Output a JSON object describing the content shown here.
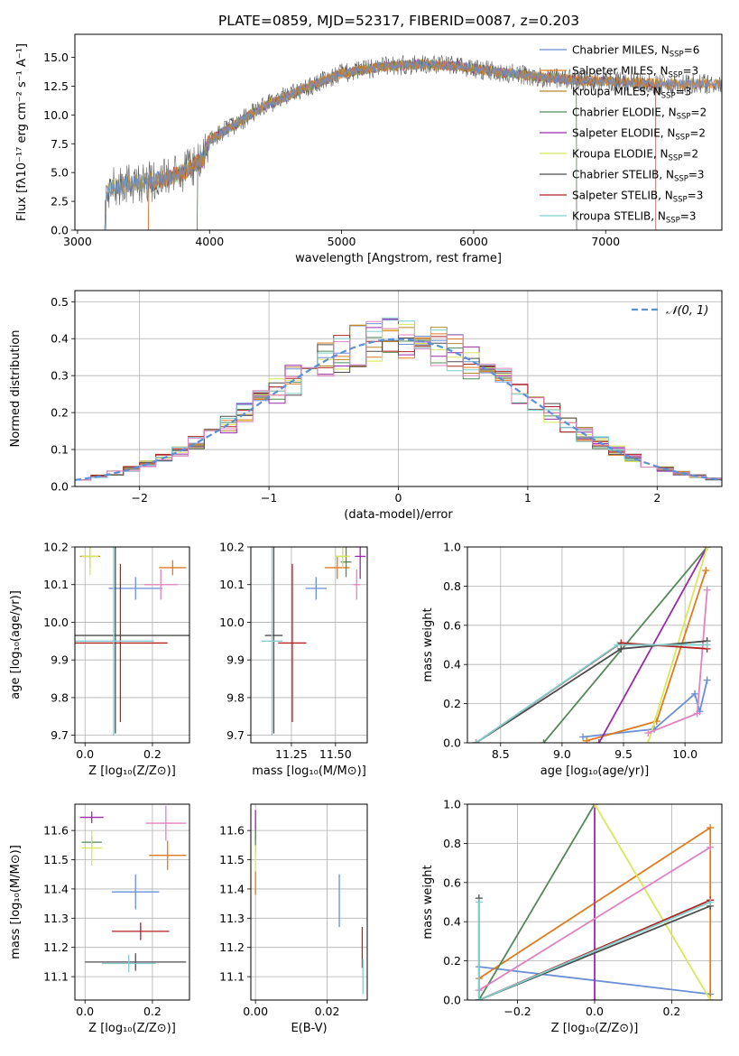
{
  "figure_title": "PLATE=0859, MJD=52317, FIBERID=0087, z=0.203",
  "colors": {
    "Chabrier MILES": "#6a8fd6",
    "Salpeter MILES": "#e07b1e",
    "Kroupa MILES": "#b5892d",
    "Chabrier ELODIE": "#55885a",
    "Salpeter ELODIE": "#9a2aaa",
    "Kroupa ELODIE": "#d8e85a",
    "Chabrier STELIB": "#4d4d4d",
    "Salpeter STELIB": "#b22222",
    "Kroupa STELIB": "#7fcfcf",
    "pink": "#e083c0"
  },
  "chart_data": [
    {
      "id": "spectrum",
      "type": "line",
      "xlabel": "wavelength [Angstrom, rest frame]",
      "ylabel": "Flux [fλ10⁻¹⁷ erg cm⁻² s⁻¹ A⁻¹]",
      "xlim": [
        2980,
        7880
      ],
      "ylim": [
        0,
        17
      ],
      "xticks": [
        3000,
        4000,
        5000,
        6000,
        7000
      ],
      "yticks": [
        0.0,
        2.5,
        5.0,
        7.5,
        10.0,
        12.5,
        15.0
      ],
      "continuum_knots": [
        [
          3200,
          0.3
        ],
        [
          3230,
          3.6
        ],
        [
          3400,
          4.0
        ],
        [
          3600,
          4.3
        ],
        [
          3800,
          5.0
        ],
        [
          3950,
          6.2
        ],
        [
          4000,
          7.8
        ],
        [
          4200,
          9.2
        ],
        [
          4400,
          10.7
        ],
        [
          4700,
          12.2
        ],
        [
          5000,
          13.6
        ],
        [
          5300,
          14.2
        ],
        [
          5600,
          14.4
        ],
        [
          5900,
          14.2
        ],
        [
          6200,
          13.7
        ],
        [
          6500,
          13.3
        ],
        [
          6800,
          13.0
        ],
        [
          7100,
          12.9
        ],
        [
          7400,
          12.7
        ]
      ],
      "legend": [
        {
          "name": "Chabrier MILES",
          "label": "Chabrier MILES, N",
          "n": "6"
        },
        {
          "name": "Salpeter MILES",
          "label": "Salpeter MILES, N",
          "n": "3"
        },
        {
          "name": "Kroupa MILES",
          "label": "Kroupa MILES, N",
          "n": "3"
        },
        {
          "name": "Chabrier ELODIE",
          "label": "Chabrier ELODIE, N",
          "n": "2"
        },
        {
          "name": "Salpeter ELODIE",
          "label": "Salpeter ELODIE, N",
          "n": "2"
        },
        {
          "name": "Kroupa ELODIE",
          "label": "Kroupa ELODIE, N",
          "n": "2"
        },
        {
          "name": "Chabrier STELIB",
          "label": "Chabrier STELIB, N",
          "n": "3"
        },
        {
          "name": "Salpeter STELIB",
          "label": "Salpeter STELIB, N",
          "n": "3"
        },
        {
          "name": "Kroupa STELIB",
          "label": "Kroupa STELIB, N",
          "n": "3"
        }
      ],
      "legend_subscript": "SSP",
      "legend_placement": "right"
    },
    {
      "id": "residuals",
      "type": "line",
      "xlabel": "(data-model)/error",
      "ylabel": "Normed distribution",
      "xlim": [
        -2.5,
        2.5
      ],
      "ylim": [
        0,
        0.53
      ],
      "xticks": [
        -2,
        -1,
        0,
        1,
        2
      ],
      "xtick_labels": [
        "−2",
        "−1",
        "0",
        "1",
        "2"
      ],
      "yticks": [
        0.0,
        0.1,
        0.2,
        0.3,
        0.4,
        0.5
      ],
      "bins": 40,
      "bin_range": [
        -2.5,
        2.5
      ],
      "reference_curve": "gaussian",
      "legend": "𝒩(0, 1)",
      "grid": true
    },
    {
      "id": "age_vs_Z",
      "type": "scatter",
      "xlabel": "Z [log₁₀(Z/Z⊙)]",
      "ylabel": "age  [log₁₀(age/yr)]",
      "xlim": [
        -0.03,
        0.31
      ],
      "ylim": [
        9.68,
        10.2
      ],
      "xticks": [
        0.0,
        0.2
      ],
      "yticks": [
        9.7,
        9.8,
        9.9,
        10.0,
        10.1,
        10.2
      ],
      "points": [
        {
          "series": "Chabrier MILES",
          "x": 0.15,
          "y": 10.09,
          "xerr": 0.08,
          "yerr": 0.03
        },
        {
          "series": "Salpeter MILES",
          "x": 0.26,
          "y": 10.145,
          "xerr": 0.04,
          "yerr": 0.02
        },
        {
          "series": "Kroupa MILES",
          "x": 0.015,
          "y": 10.175,
          "xerr": 0.03,
          "yerr": 0.03
        },
        {
          "series": "Kroupa ELODIE",
          "x": 0.015,
          "y": 10.175,
          "xerr": 0.025,
          "yerr": 0.05
        },
        {
          "series": "pink",
          "x": 0.225,
          "y": 10.1,
          "xerr": 0.05,
          "yerr": 0.04
        },
        {
          "series": "Chabrier STELIB",
          "x": 0.09,
          "y": 9.965,
          "xerr": 0.3,
          "yerr": 0.26
        },
        {
          "series": "Salpeter STELIB",
          "x": 0.105,
          "y": 9.945,
          "xerr": 0.14,
          "yerr": 0.21
        },
        {
          "series": "Kroupa STELIB",
          "x": 0.085,
          "y": 9.95,
          "xerr": 0.12,
          "yerr": 0.25
        }
      ]
    },
    {
      "id": "age_vs_mass",
      "type": "scatter",
      "xlabel": "mass [log₁₀(M/M⊙)]",
      "ylabel": "",
      "xlim": [
        11.02,
        11.68
      ],
      "ylim": [
        9.68,
        10.2
      ],
      "xticks": [
        11.25,
        11.5
      ],
      "xtick_labels": [
        "11.25",
        "11.50"
      ],
      "yticks": [
        9.7,
        9.8,
        9.9,
        10.0,
        10.1,
        10.2
      ],
      "points": [
        {
          "series": "Chabrier MILES",
          "x": 11.39,
          "y": 10.09,
          "xerr": 0.06,
          "yerr": 0.03
        },
        {
          "series": "Salpeter MILES",
          "x": 11.51,
          "y": 10.145,
          "xerr": 0.07,
          "yerr": 0.03
        },
        {
          "series": "Kroupa MILES",
          "x": 11.54,
          "y": 10.175,
          "xerr": 0.04,
          "yerr": 0.03
        },
        {
          "series": "Chabrier ELODIE",
          "x": 11.56,
          "y": 10.16,
          "xerr": 0.03,
          "yerr": 0.04
        },
        {
          "series": "Salpeter ELODIE",
          "x": 11.64,
          "y": 10.175,
          "xerr": 0.03,
          "yerr": 0.06
        },
        {
          "series": "Kroupa ELODIE",
          "x": 11.54,
          "y": 10.175,
          "xerr": 0.04,
          "yerr": 0.03
        },
        {
          "series": "pink",
          "x": 11.62,
          "y": 10.1,
          "xerr": 0.02,
          "yerr": 0.04
        },
        {
          "series": "Chabrier STELIB",
          "x": 11.15,
          "y": 9.965,
          "xerr": 0.05,
          "yerr": 0.26
        },
        {
          "series": "Salpeter STELIB",
          "x": 11.255,
          "y": 9.945,
          "xerr": 0.08,
          "yerr": 0.21
        },
        {
          "series": "Kroupa STELIB",
          "x": 11.14,
          "y": 9.95,
          "xerr": 0.06,
          "yerr": 0.25
        }
      ]
    },
    {
      "id": "mass_weight_vs_age",
      "type": "line",
      "xlabel": "age  [log₁₀(age/yr)]",
      "ylabel": "mass weight",
      "xlim": [
        8.23,
        10.3
      ],
      "ylim": [
        0,
        1.0
      ],
      "xticks": [
        8.5,
        9.0,
        9.5,
        10.0
      ],
      "yticks": [
        0.0,
        0.2,
        0.4,
        0.6,
        0.8,
        1.0
      ],
      "series": [
        {
          "name": "Chabrier MILES",
          "x": [
            9.17,
            9.75,
            10.08,
            10.12,
            10.18
          ],
          "y": [
            0.03,
            0.07,
            0.25,
            0.16,
            0.32
          ]
        },
        {
          "name": "Salpeter MILES",
          "x": [
            9.2,
            9.77,
            10.17
          ],
          "y": [
            0.01,
            0.11,
            0.88
          ]
        },
        {
          "name": "Chabrier ELODIE",
          "x": [
            8.85,
            10.18
          ],
          "y": [
            0.0,
            1.0
          ]
        },
        {
          "name": "Salpeter ELODIE",
          "x": [
            9.3,
            10.18
          ],
          "y": [
            0.0,
            1.0
          ]
        },
        {
          "name": "Kroupa ELODIE",
          "x": [
            9.7,
            10.18
          ],
          "y": [
            0.0,
            1.0
          ]
        },
        {
          "name": "pink",
          "x": [
            9.7,
            10.1,
            10.18
          ],
          "y": [
            0.05,
            0.15,
            0.78
          ]
        },
        {
          "name": "Chabrier STELIB",
          "x": [
            8.3,
            9.48,
            10.18
          ],
          "y": [
            0.0,
            0.48,
            0.52
          ]
        },
        {
          "name": "Salpeter STELIB",
          "x": [
            8.3,
            9.48,
            10.18
          ],
          "y": [
            0.0,
            0.51,
            0.48
          ]
        },
        {
          "name": "Kroupa STELIB",
          "x": [
            8.3,
            9.45,
            10.18
          ],
          "y": [
            0.0,
            0.5,
            0.5
          ]
        }
      ]
    },
    {
      "id": "mass_vs_Z",
      "type": "scatter",
      "xlabel": "Z [log₁₀(Z/Z⊙)]",
      "ylabel": "mass [log₁₀(M/M⊙)]",
      "xlim": [
        -0.03,
        0.31
      ],
      "ylim": [
        11.02,
        11.69
      ],
      "xticks": [
        0.0,
        0.2
      ],
      "yticks": [
        11.1,
        11.2,
        11.3,
        11.4,
        11.5,
        11.6
      ],
      "points": [
        {
          "series": "Chabrier MILES",
          "x": 0.15,
          "y": 11.39,
          "xerr": 0.07,
          "yerr": 0.06
        },
        {
          "series": "Salpeter MILES",
          "x": 0.245,
          "y": 11.515,
          "xerr": 0.055,
          "yerr": 0.05
        },
        {
          "series": "Chabrier ELODIE",
          "x": 0.02,
          "y": 11.56,
          "xerr": 0.03,
          "yerr": 0.02
        },
        {
          "series": "Salpeter ELODIE",
          "x": 0.02,
          "y": 11.645,
          "xerr": 0.035,
          "yerr": 0.02
        },
        {
          "series": "Kroupa ELODIE",
          "x": 0.02,
          "y": 11.54,
          "xerr": 0.03,
          "yerr": 0.06
        },
        {
          "series": "pink",
          "x": 0.24,
          "y": 11.625,
          "xerr": 0.06,
          "yerr": 0.06
        },
        {
          "series": "Salpeter STELIB",
          "x": 0.165,
          "y": 11.255,
          "xerr": 0.085,
          "yerr": 0.03
        },
        {
          "series": "Chabrier STELIB",
          "x": 0.15,
          "y": 11.15,
          "xerr": 0.15,
          "yerr": 0.03
        },
        {
          "series": "Kroupa STELIB",
          "x": 0.13,
          "y": 11.145,
          "xerr": 0.08,
          "yerr": 0.03
        }
      ]
    },
    {
      "id": "mass_vs_EBV",
      "type": "scatter",
      "xlabel": "E(B-V)",
      "ylabel": "",
      "xlim": [
        -0.0013,
        0.0312
      ],
      "ylim": [
        11.02,
        11.69
      ],
      "xticks": [
        0.0,
        0.02
      ],
      "xtick_labels": [
        "0.00",
        "0.02"
      ],
      "yticks": [
        11.1,
        11.2,
        11.3,
        11.4,
        11.5,
        11.6
      ],
      "points": [
        {
          "series": "Salpeter ELODIE",
          "x": 0.0,
          "y": 11.62,
          "xerr": 0.0,
          "yerr": 0.05
        },
        {
          "series": "Chabrier ELODIE",
          "x": 0.0,
          "y": 11.56,
          "xerr": 0.0,
          "yerr": 0.04
        },
        {
          "series": "Kroupa ELODIE",
          "x": 0.0,
          "y": 11.5,
          "xerr": 0.0,
          "yerr": 0.05
        },
        {
          "series": "Salpeter MILES",
          "x": 0.0,
          "y": 11.42,
          "xerr": 0.0,
          "yerr": 0.04
        },
        {
          "series": "Chabrier MILES",
          "x": 0.0234,
          "y": 11.36,
          "xerr": 0.0,
          "yerr": 0.09
        },
        {
          "series": "Salpeter STELIB",
          "x": 0.0298,
          "y": 11.2,
          "xerr": 0.0,
          "yerr": 0.07
        },
        {
          "series": "Kroupa STELIB",
          "x": 0.03,
          "y": 11.1,
          "xerr": 0.0,
          "yerr": 0.06
        }
      ]
    },
    {
      "id": "mass_weight_vs_Z",
      "type": "line",
      "xlabel": "Z [log₁₀(Z/Z⊙)]",
      "ylabel": "mass weight",
      "xlim": [
        -0.33,
        0.33
      ],
      "ylim": [
        0,
        1.0
      ],
      "xticks": [
        -0.2,
        0.0,
        0.2
      ],
      "xtick_labels": [
        "−0.2",
        "0.0",
        "0.2"
      ],
      "yticks": [
        0.0,
        0.2,
        0.4,
        0.6,
        0.8,
        1.0
      ],
      "series": [
        {
          "name": "Chabrier MILES",
          "x": [
            -0.3,
            0.3
          ],
          "y": [
            0.17,
            0.03
          ]
        },
        {
          "name": "Salpeter MILES",
          "x": [
            -0.3,
            0.3,
            0.3
          ],
          "y": [
            0.11,
            0.88,
            0.0
          ]
        },
        {
          "name": "Chabrier ELODIE",
          "x": [
            -0.3,
            0.0
          ],
          "y": [
            0.0,
            1.0
          ]
        },
        {
          "name": "Salpeter ELODIE",
          "x": [
            0.0,
            0.0
          ],
          "y": [
            0.0,
            1.0
          ]
        },
        {
          "name": "Kroupa ELODIE",
          "x": [
            0.0,
            0.3
          ],
          "y": [
            1.0,
            0.0
          ]
        },
        {
          "name": "pink",
          "x": [
            -0.3,
            0.3
          ],
          "y": [
            0.05,
            0.78
          ]
        },
        {
          "name": "Chabrier STELIB",
          "x": [
            -0.3,
            -0.3,
            0.3
          ],
          "y": [
            0.52,
            0.0,
            0.48
          ]
        },
        {
          "name": "Salpeter STELIB",
          "x": [
            -0.3,
            0.3
          ],
          "y": [
            0.0,
            0.51
          ]
        },
        {
          "name": "Kroupa STELIB",
          "x": [
            -0.3,
            -0.3,
            0.3
          ],
          "y": [
            0.5,
            0.0,
            0.5
          ]
        }
      ]
    }
  ]
}
